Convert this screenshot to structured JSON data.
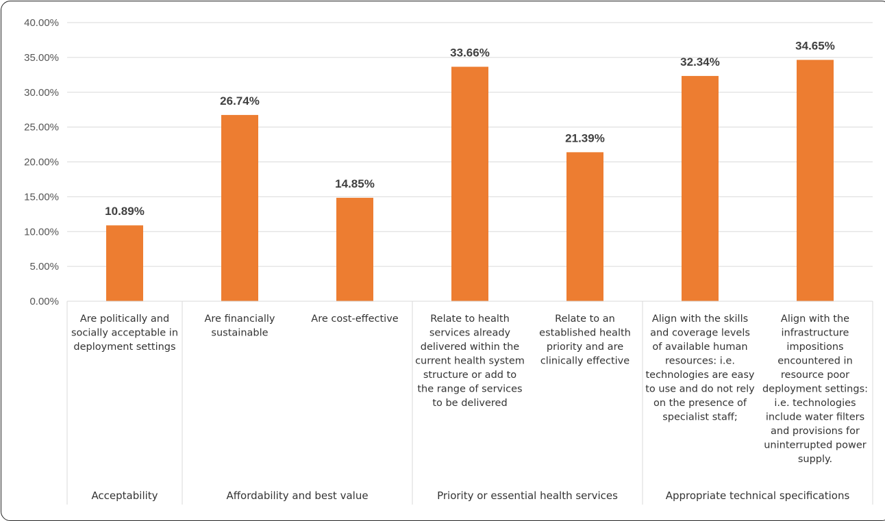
{
  "chart_data": {
    "type": "bar",
    "categories": [
      "Are politically and socially acceptable in deployment settings",
      "Are financially sustainable",
      "Are cost-effective",
      "Relate to health services already delivered within the current health system structure or add to the range of services to be delivered",
      "Relate to an established health priority and are clinically effective",
      "Align with the skills and coverage levels of available human resources: i.e. technologies are easy to use and do not rely on the presence of specialist staff;",
      "Align with the infrastructure impositions encountered in resource poor deployment settings: i.e. technologies include water filters and provisions for uninterrupted power supply."
    ],
    "category_lines": [
      [
        "Are politically and",
        "socially acceptable in",
        "deployment settings"
      ],
      [
        "Are financially",
        "sustainable"
      ],
      [
        "Are cost-effective"
      ],
      [
        "Relate to health",
        "services already",
        "delivered within the",
        "current health system",
        "structure or add to",
        "the range of services",
        "to be delivered"
      ],
      [
        "Relate to an",
        "established health",
        "priority and are",
        "clinically effective"
      ],
      [
        "Align with the skills",
        "and coverage levels",
        "of available human",
        "resources: i.e.",
        "technologies are easy",
        "to use and do not rely",
        "on the presence of",
        "specialist staff;"
      ],
      [
        "Align with the",
        "infrastructure",
        "impositions",
        "encountered in",
        "resource poor",
        "deployment settings:",
        "i.e. technologies",
        "include water filters",
        "and provisions for",
        "uninterrupted power",
        "supply."
      ]
    ],
    "values": [
      10.89,
      26.74,
      14.85,
      33.66,
      21.39,
      32.34,
      34.65
    ],
    "data_labels": [
      "10.89%",
      "26.74%",
      "14.85%",
      "33.66%",
      "21.39%",
      "32.34%",
      "34.65%"
    ],
    "groups": [
      {
        "name": "Acceptability",
        "count": 1
      },
      {
        "name": "Affordability and best value",
        "count": 2
      },
      {
        "name": "Priority or essential health services",
        "count": 2
      },
      {
        "name": "Appropriate technical specifications",
        "count": 2
      }
    ],
    "yticks": [
      "0.00%",
      "5.00%",
      "10.00%",
      "15.00%",
      "20.00%",
      "25.00%",
      "30.00%",
      "35.00%",
      "40.00%"
    ],
    "ylim": [
      0,
      40
    ],
    "grid": true,
    "bar_color": "#ED7D31",
    "title": "",
    "xlabel": "",
    "ylabel": ""
  }
}
